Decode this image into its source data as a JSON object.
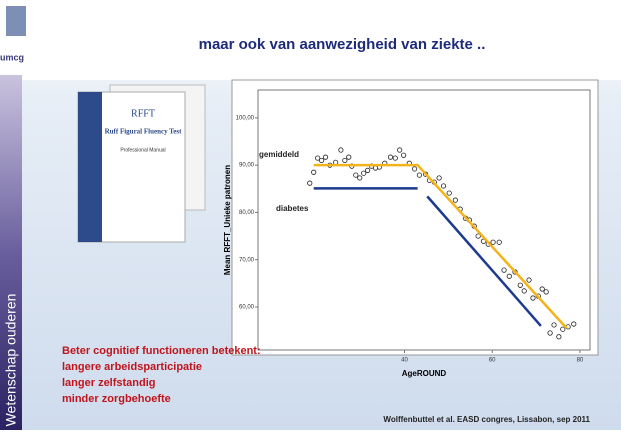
{
  "slide": {
    "title": "maar ook van aanwezigheid van ziekte ..",
    "logo": "umcg",
    "sidebar": "Wetenschap ouderen",
    "bullets": [
      "Beter cognitief functioneren betekent:",
      "langere arbeidsparticipatie",
      "langer zelfstandig",
      "minder zorgbehoefte"
    ],
    "source": "Wolffenbuttel et al. EASD congres, Lissabon, sep 2011",
    "book": {
      "title": "RFFT",
      "subtitle": "Ruff Figural Fluency Test",
      "manual": "Professional Manual"
    }
  },
  "chart_data": {
    "type": "scatter",
    "xlabel": "AgeROUND",
    "ylabel": "Mean RFFT_Unieke patronen",
    "x": [
      18.4,
      19.3,
      20.2,
      21.1,
      22,
      23,
      24.3,
      25.5,
      26.4,
      27.3,
      28,
      28.9,
      29.8,
      30.7,
      31.6,
      32.5,
      33.4,
      34.3,
      35.5,
      36.8,
      37.9,
      38.9,
      39.8,
      41.1,
      42.3,
      43.4,
      44.8,
      45.7,
      46.8,
      47.9,
      48.9,
      50.2,
      51.6,
      52.7,
      53.9,
      54.8,
      55.9,
      56.8,
      58,
      59.1,
      60.2,
      61.6,
      62.7,
      63.9,
      65.2,
      66.4,
      67.3,
      68.4,
      69.3,
      70.5,
      71.4,
      72.3,
      73.2,
      74.1,
      75.2,
      76.1,
      77.3,
      78.6
    ],
    "values": [
      86.2,
      88.5,
      91.5,
      91,
      91.7,
      90,
      90.6,
      93.2,
      91,
      91.7,
      89.8,
      87.9,
      87.3,
      88.3,
      88.9,
      89.8,
      89.4,
      89.6,
      90.4,
      91.7,
      91.5,
      93.2,
      92.1,
      90.4,
      89.2,
      87.9,
      88.1,
      86.8,
      86.4,
      87.3,
      85.6,
      84.1,
      82.6,
      80.7,
      78.8,
      78.4,
      77.1,
      75,
      73.9,
      73.3,
      73.7,
      73.7,
      67.8,
      66.5,
      67.4,
      64.6,
      63.4,
      65.7,
      61.9,
      62.3,
      63.8,
      63.2,
      54.5,
      56.2,
      53.7,
      55.3,
      55.8,
      56.4
    ],
    "lines": [
      {
        "name": "gemiddeld",
        "color": "#f5b21a",
        "x": [
          19.3,
          43,
          77
        ],
        "values": [
          90,
          90,
          55.5
        ]
      },
      {
        "name": "diabetes",
        "color": "#1c3a8e",
        "x": [
          19.3,
          43,
          44,
          45.2,
          71.1
        ],
        "values": [
          85.1,
          85.1,
          null,
          83.4,
          56
        ]
      }
    ],
    "xlim": [
      6.6,
      82.3
    ],
    "xticks": [
      40,
      60,
      80
    ],
    "ylim": [
      50.9,
      105.9
    ],
    "yticks": [
      {
        "value": 60,
        "label": "60,00"
      },
      {
        "value": 70,
        "label": "70,00"
      },
      {
        "value": 80,
        "label": "80,00"
      },
      {
        "value": 90,
        "label": "90,00"
      },
      {
        "value": 100,
        "label": "100,00"
      }
    ]
  }
}
